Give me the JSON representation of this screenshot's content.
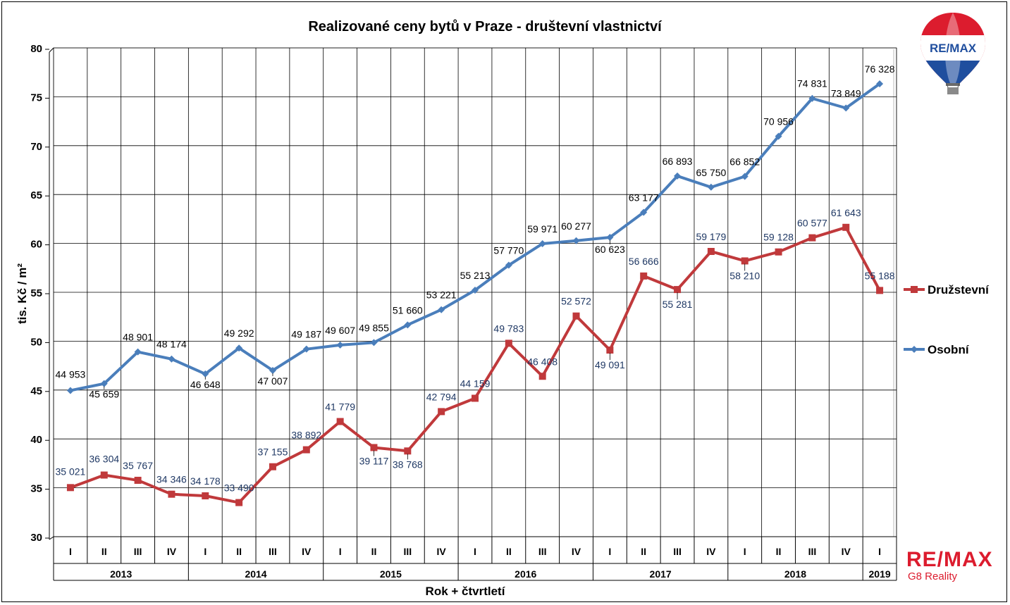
{
  "chart_data": {
    "type": "line",
    "title": "Realizované ceny bytů v Praze - društevní vlastnictví",
    "xlabel": "Rok + čtvrtletí",
    "ylabel": "tis. Kč / m²",
    "ylim": [
      30,
      80
    ],
    "yticks": [
      "30",
      "35",
      "40",
      "45",
      "50",
      "55",
      "60",
      "65",
      "70",
      "75",
      "80"
    ],
    "grid": true,
    "legend_position": "right",
    "categories": [
      "I",
      "II",
      "III",
      "IV",
      "I",
      "II",
      "III",
      "IV",
      "I",
      "II",
      "III",
      "IV",
      "I",
      "II",
      "III",
      "IV",
      "I",
      "II",
      "III",
      "IV",
      "I",
      "II",
      "III",
      "IV",
      "I"
    ],
    "years": [
      {
        "label": "2013",
        "span": 4
      },
      {
        "label": "2014",
        "span": 4
      },
      {
        "label": "2015",
        "span": 4
      },
      {
        "label": "2016",
        "span": 4
      },
      {
        "label": "2017",
        "span": 4
      },
      {
        "label": "2018",
        "span": 4
      },
      {
        "label": "2019",
        "span": 1
      }
    ],
    "series": [
      {
        "name": "Družstevní",
        "color": "#c0393b",
        "marker": "square",
        "values": [
          35.021,
          36.304,
          35.767,
          34.346,
          34.178,
          33.49,
          37.155,
          38.892,
          41.779,
          39.117,
          38.768,
          42.794,
          44.159,
          49.783,
          46.408,
          52.572,
          49.091,
          56.666,
          55.281,
          59.179,
          58.21,
          59.128,
          60.577,
          61.643,
          55.188
        ],
        "labels": [
          "35 021",
          "36 304",
          "35 767",
          "34 346",
          "34 178",
          "33 490",
          "37 155",
          "38 892",
          "41 779",
          "39 117",
          "38 768",
          "42 794",
          "44 159",
          "49 783",
          "46 408",
          "52 572",
          "49 091",
          "56 666",
          "55 281",
          "59 179",
          "58 210",
          "59 128",
          "60 577",
          "61 643",
          "55 188"
        ]
      },
      {
        "name": "Osobní",
        "color": "#4a7ebb",
        "marker": "diamond",
        "values": [
          44.953,
          45.659,
          48.901,
          48.174,
          46.648,
          49.292,
          47.007,
          49.187,
          49.607,
          49.855,
          51.66,
          53.221,
          55.213,
          57.77,
          59.971,
          60.277,
          60.623,
          63.177,
          66.893,
          65.75,
          66.852,
          70.956,
          74.831,
          73.849,
          76.328
        ],
        "labels": [
          "44 953",
          "45 659",
          "48 901",
          "48 174",
          "46 648",
          "49 292",
          "47 007",
          "49 187",
          "49 607",
          "49 855",
          "51 660",
          "53 221",
          "55 213",
          "57 770",
          "59 971",
          "60 277",
          "60 623",
          "63 177",
          "66 893",
          "65 750",
          "66 852",
          "70 956",
          "74 831",
          "73 849",
          "76 328"
        ]
      }
    ]
  },
  "branding": {
    "balloon_logo_text": "RE/MAX",
    "brand_name": "RE/MAX",
    "brand_sub": "G8 Reality",
    "brand_color": "#dc1c2e",
    "logo_icon": "hot-air-balloon-icon"
  }
}
